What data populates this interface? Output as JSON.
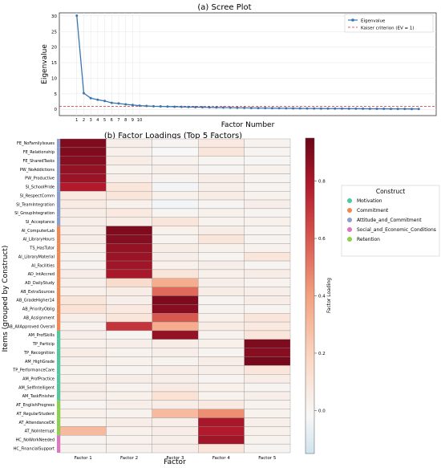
{
  "chart_data": [
    {
      "type": "line",
      "title": "(a) Scree Plot",
      "xlabel": "Factor Number",
      "ylabel": "Eigenvalue",
      "ylim": [
        -2,
        31
      ],
      "yticks": [
        0,
        5,
        10,
        15,
        20,
        25,
        30
      ],
      "xticks": [
        "1",
        "2",
        "3",
        "4",
        "5",
        "6",
        "7",
        "8",
        "9",
        "10"
      ],
      "x": [
        1,
        2,
        3,
        4,
        5,
        6,
        7,
        8,
        9,
        10,
        11,
        12,
        13,
        14,
        15,
        16,
        17,
        18,
        19,
        20,
        21,
        22,
        23,
        24,
        25,
        26,
        27,
        28,
        29,
        30,
        31,
        32,
        33,
        34,
        35,
        36,
        37,
        38,
        39,
        40,
        41,
        42,
        43,
        44,
        45,
        46,
        47,
        48,
        49,
        50
      ],
      "series": [
        {
          "name": "Eigenvalue",
          "color": "#3b75af",
          "values": [
            30.1,
            5.2,
            3.6,
            3.1,
            2.7,
            2.1,
            1.9,
            1.6,
            1.4,
            1.2,
            1.1,
            1.0,
            0.95,
            0.9,
            0.85,
            0.8,
            0.76,
            0.72,
            0.68,
            0.64,
            0.6,
            0.57,
            0.54,
            0.51,
            0.48,
            0.45,
            0.43,
            0.41,
            0.39,
            0.37,
            0.35,
            0.33,
            0.31,
            0.29,
            0.28,
            0.27,
            0.26,
            0.25,
            0.24,
            0.23,
            0.22,
            0.21,
            0.2,
            0.19,
            0.18,
            0.17,
            0.16,
            0.15,
            0.14,
            0.13
          ]
        }
      ],
      "reference_line": {
        "name": "Kaiser criterion (EV = 1)",
        "y": 1,
        "color": "#d62728"
      },
      "grid": true,
      "legend": "top-right"
    },
    {
      "type": "heatmap",
      "title": "(b) Factor Loadings (Top 5 Factors)",
      "xlabel": "Factor",
      "ylabel": "Items (grouped by Construct)",
      "colorbar_label": "Factor Loading",
      "colorbar_ticks": [
        0.0,
        0.2,
        0.4,
        0.6,
        0.8
      ],
      "colorbar_range": [
        -0.15,
        0.95
      ],
      "columns": [
        "Factor 1",
        "Factor 2",
        "Factor 3",
        "Factor 4",
        "Factor 5"
      ],
      "legend_title": "Construct",
      "constructs": [
        {
          "name": "Motivation",
          "color": "#4ec9a0"
        },
        {
          "name": "Commitment",
          "color": "#f4874f"
        },
        {
          "name": "Attitude_and_Commitment",
          "color": "#8b9fd0"
        },
        {
          "name": "Social_and_Economic_Conditions",
          "color": "#e272c2"
        },
        {
          "name": "Retention",
          "color": "#8bd14b"
        }
      ],
      "rows": [
        {
          "label": "FE_NoFamilyIssues",
          "construct": 2,
          "values": [
            0.9,
            0.05,
            0.02,
            0.08,
            0.03
          ]
        },
        {
          "label": "FE_Relationship",
          "construct": 2,
          "values": [
            0.9,
            0.04,
            0.0,
            0.1,
            0.02
          ]
        },
        {
          "label": "FE_SharedTasks",
          "construct": 2,
          "values": [
            0.88,
            0.06,
            0.03,
            0.02,
            0.01
          ]
        },
        {
          "label": "PW_NoAddictions",
          "construct": 2,
          "values": [
            0.85,
            0.03,
            0.05,
            0.02,
            0.04
          ]
        },
        {
          "label": "PW_Productive",
          "construct": 2,
          "values": [
            0.83,
            0.05,
            0.03,
            0.06,
            0.02
          ]
        },
        {
          "label": "SI_SchoolPride",
          "construct": 2,
          "values": [
            0.78,
            0.1,
            -0.02,
            0.05,
            0.02
          ]
        },
        {
          "label": "SI_RespectComm",
          "construct": 2,
          "values": [
            0.08,
            0.1,
            0.04,
            0.06,
            0.03
          ]
        },
        {
          "label": "SI_TeamIntegration",
          "construct": 2,
          "values": [
            0.07,
            0.04,
            -0.02,
            0.02,
            0.05
          ]
        },
        {
          "label": "SI_GroupIntegration",
          "construct": 2,
          "values": [
            0.06,
            0.08,
            0.02,
            0.04,
            0.02
          ]
        },
        {
          "label": "SI_Acceptance",
          "construct": 2,
          "values": [
            0.05,
            0.06,
            0.1,
            0.03,
            0.04
          ]
        },
        {
          "label": "AI_ComputerLab",
          "construct": 1,
          "values": [
            0.05,
            0.9,
            0.04,
            0.06,
            0.02
          ]
        },
        {
          "label": "AI_LibraryHours",
          "construct": 1,
          "values": [
            0.06,
            0.88,
            0.03,
            0.1,
            0.02
          ]
        },
        {
          "label": "TS_HasTutor",
          "construct": 1,
          "values": [
            0.04,
            0.85,
            0.06,
            0.04,
            0.03
          ]
        },
        {
          "label": "AI_LibraryMaterial",
          "construct": 1,
          "values": [
            0.03,
            0.83,
            0.05,
            0.02,
            0.1
          ]
        },
        {
          "label": "AI_Facilities",
          "construct": 1,
          "values": [
            0.02,
            0.82,
            0.04,
            0.05,
            0.02
          ]
        },
        {
          "label": "AD_IntAccred",
          "construct": 1,
          "values": [
            0.06,
            0.8,
            0.1,
            0.04,
            0.06
          ]
        },
        {
          "label": "AD_DailyStudy",
          "construct": 1,
          "values": [
            0.05,
            0.15,
            0.35,
            0.05,
            0.03
          ]
        },
        {
          "label": "AB_ExtraSources",
          "construct": 1,
          "values": [
            0.04,
            0.06,
            0.55,
            0.06,
            0.05
          ]
        },
        {
          "label": "AB_GradeHigher14",
          "construct": 1,
          "values": [
            0.1,
            0.05,
            0.9,
            0.02,
            0.06
          ]
        },
        {
          "label": "AB_PriorityOblig",
          "construct": 1,
          "values": [
            0.12,
            0.08,
            0.88,
            0.03,
            0.02
          ]
        },
        {
          "label": "AB_Assignment",
          "construct": 1,
          "values": [
            0.05,
            0.1,
            0.6,
            0.04,
            0.1
          ]
        },
        {
          "label": "AB_AllApproved Overall",
          "construct": 1,
          "values": [
            0.03,
            0.7,
            0.35,
            0.06,
            0.08
          ]
        },
        {
          "label": "AM_ProfSkills",
          "construct": 0,
          "values": [
            0.05,
            0.02,
            0.85,
            0.03,
            0.1
          ]
        },
        {
          "label": "TP_Particip",
          "construct": 0,
          "values": [
            0.04,
            0.05,
            0.06,
            0.04,
            0.9
          ]
        },
        {
          "label": "TP_Recognition",
          "construct": 0,
          "values": [
            0.06,
            0.03,
            0.05,
            0.02,
            0.88
          ]
        },
        {
          "label": "AM_HighGrade",
          "construct": 0,
          "values": [
            0.05,
            0.04,
            0.03,
            0.06,
            0.92
          ]
        },
        {
          "label": "TP_PerformanceCare",
          "construct": 0,
          "values": [
            0.03,
            0.02,
            0.06,
            0.05,
            0.1
          ]
        },
        {
          "label": "AM_ProfPractice",
          "construct": 0,
          "values": [
            0.04,
            0.06,
            0.05,
            0.02,
            0.06
          ]
        },
        {
          "label": "AM_SelfIntelligent",
          "construct": 0,
          "values": [
            0.06,
            0.03,
            0.07,
            0.04,
            0.02
          ]
        },
        {
          "label": "AM_TaskFinisher",
          "construct": 0,
          "values": [
            0.05,
            0.04,
            0.12,
            0.03,
            0.05
          ]
        },
        {
          "label": "AT_EnglishProgress",
          "construct": 4,
          "values": [
            0.02,
            0.05,
            0.06,
            0.08,
            0.03
          ]
        },
        {
          "label": "AT_RegularStudent",
          "construct": 4,
          "values": [
            0.04,
            0.03,
            0.3,
            0.45,
            0.03
          ]
        },
        {
          "label": "AT_AttendanceOK",
          "construct": 4,
          "values": [
            0.03,
            0.06,
            0.05,
            0.8,
            0.05
          ]
        },
        {
          "label": "AT_NoInterrupt",
          "construct": 4,
          "values": [
            0.3,
            0.04,
            0.06,
            0.78,
            0.04
          ]
        },
        {
          "label": "HC_NoWorkNeeded",
          "construct": 3,
          "values": [
            0.02,
            0.03,
            0.05,
            0.82,
            0.03
          ]
        },
        {
          "label": "HC_FinancialSupport",
          "construct": 3,
          "values": [
            0.03,
            0.04,
            0.05,
            0.1,
            0.02
          ]
        }
      ]
    }
  ]
}
